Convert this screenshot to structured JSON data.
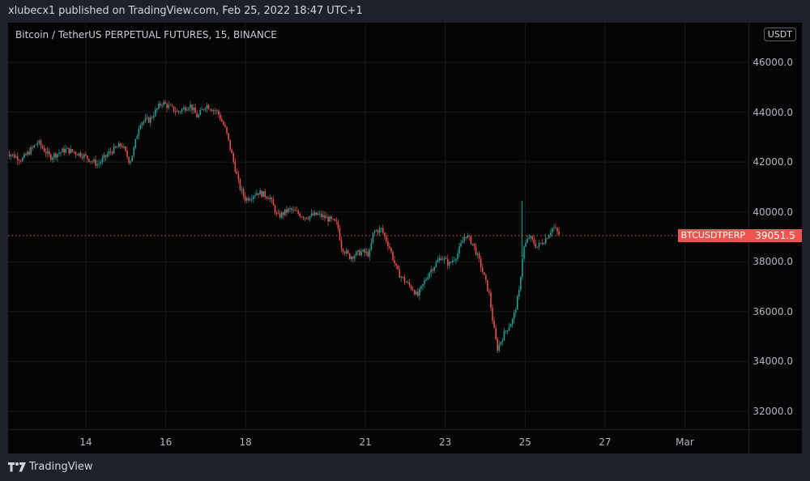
{
  "header": {
    "published_text": "xlubecx1 published on TradingView.com, Feb 25, 2022 18:47 UTC+1"
  },
  "chart": {
    "title": "Bitcoin / TetherUS PERPETUAL FUTURES, 15, BINANCE",
    "currency_unit": "USDT",
    "symbol_tag": "BTCUSDTPERP",
    "last_price": "39051.5",
    "colors": {
      "up": "#26a69a",
      "down": "#ef5350",
      "background": "#050506",
      "price_line": "#f05350"
    }
  },
  "footer": {
    "brand": "TradingView"
  },
  "chart_data": {
    "type": "candlestick",
    "title": "Bitcoin / TetherUS PERPETUAL FUTURES, 15, BINANCE",
    "xlabel": "",
    "ylabel": "USDT",
    "ylim": [
      31000,
      47000
    ],
    "y_ticks": [
      "46000.0",
      "44000.0",
      "42000.0",
      "40000.0",
      "38000.0",
      "36000.0",
      "34000.0",
      "32000.0"
    ],
    "x_ticks": [
      "14",
      "16",
      "18",
      "21",
      "23",
      "25",
      "27",
      "Mar"
    ],
    "grid": true,
    "last_price": 39051.5,
    "approx_path": {
      "x": [
        "Feb 12",
        "Feb 13",
        "Feb 14",
        "Feb 15",
        "Feb 15.3",
        "Feb 16",
        "Feb 17",
        "Feb 17.4",
        "Feb 18",
        "Feb 19",
        "Feb 20",
        "Feb 20.3",
        "Feb 21",
        "Feb 21.3",
        "Feb 22",
        "Feb 23",
        "Feb 23.5",
        "Feb 24",
        "Feb 24.3",
        "Feb 24.8",
        "Feb 25",
        "Feb 25.7"
      ],
      "close": [
        42400,
        42600,
        42200,
        42800,
        43900,
        44400,
        44200,
        43600,
        40400,
        39900,
        39700,
        38300,
        38500,
        39300,
        36700,
        38300,
        39100,
        37000,
        34500,
        36400,
        38900,
        39050
      ]
    }
  }
}
